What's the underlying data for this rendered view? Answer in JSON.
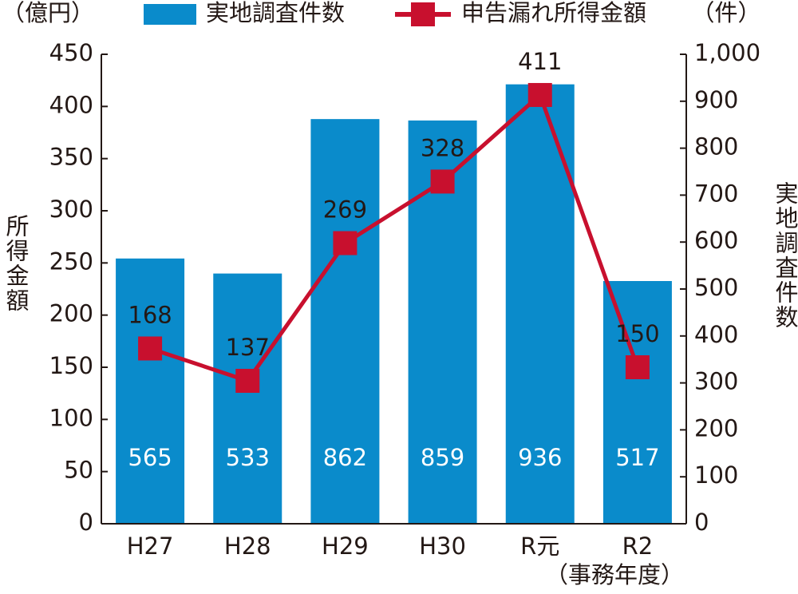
{
  "chart_data": {
    "type": "combo",
    "y_unit": "（億円）",
    "y2_unit": "（件）",
    "ylabel": "所得金額",
    "y2label": "実地調査件数",
    "x_unit": "（事務年度）",
    "categories": [
      "H27",
      "H28",
      "H29",
      "H30",
      "R元",
      "R2"
    ],
    "series": [
      {
        "name": "実地調査件数",
        "type": "bar",
        "axis": "y2",
        "color": "#0a8bcb",
        "values": [
          565,
          533,
          862,
          859,
          936,
          517
        ]
      },
      {
        "name": "申告漏れ所得金額",
        "type": "line",
        "color": "#c8102e",
        "values": [
          168,
          137,
          269,
          328,
          411,
          150
        ]
      }
    ],
    "ylim": [
      0,
      450
    ],
    "yticks": [
      0,
      50,
      100,
      150,
      200,
      250,
      300,
      350,
      400,
      450
    ],
    "y2lim": [
      0,
      1000
    ],
    "y2ticks": [
      0,
      100,
      200,
      300,
      400,
      500,
      600,
      700,
      800,
      900,
      {
        "value": 1000,
        "label": "1,000"
      }
    ],
    "grid": false
  }
}
